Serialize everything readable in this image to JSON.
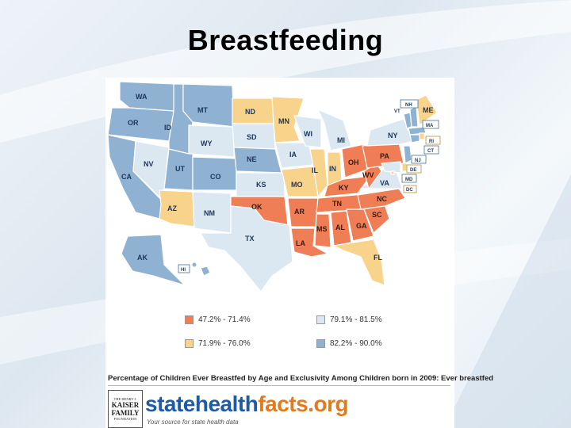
{
  "slide": {
    "title": "Breastfeeding"
  },
  "legend": {
    "items": [
      {
        "label": "47.2% - 71.4%",
        "color": "#ef7d55"
      },
      {
        "label": "79.1% - 81.5%",
        "color": "#dbe8f2"
      },
      {
        "label": "71.9% - 76.0%",
        "color": "#f8d38c"
      },
      {
        "label": "82.2% - 90.0%",
        "color": "#8fb2d3"
      }
    ]
  },
  "map": {
    "state_labels": {
      "WA": "WA",
      "OR": "OR",
      "CA": "CA",
      "NV": "NV",
      "ID": "ID",
      "MT": "MT",
      "WY": "WY",
      "UT": "UT",
      "AZ": "AZ",
      "CO": "CO",
      "NM": "NM",
      "ND": "ND",
      "SD": "SD",
      "NE": "NE",
      "KS": "KS",
      "OK": "OK",
      "TX": "TX",
      "MN": "MN",
      "IA": "IA",
      "MO": "MO",
      "AR": "AR",
      "LA": "LA",
      "WI": "WI",
      "IL": "IL",
      "MI": "MI",
      "IN": "IN",
      "OH": "OH",
      "KY": "KY",
      "TN": "TN",
      "MS": "MS",
      "AL": "AL",
      "GA": "GA",
      "FL": "FL",
      "SC": "SC",
      "NC": "NC",
      "VA": "VA",
      "WV": "WV",
      "PA": "PA",
      "NY": "NY",
      "VT": "VT",
      "NH": "NH",
      "ME": "ME",
      "MA": "MA",
      "RI": "RI",
      "CT": "CT",
      "NJ": "NJ",
      "DE": "DE",
      "MD": "MD",
      "DC": "DC",
      "AK": "AK",
      "HI": "HI"
    },
    "state_colors": {
      "WA": "#8fb2d3",
      "OR": "#8fb2d3",
      "CA": "#8fb2d3",
      "NV": "#dbe8f2",
      "ID": "#8fb2d3",
      "MT": "#8fb2d3",
      "WY": "#dbe8f2",
      "UT": "#8fb2d3",
      "AZ": "#f8d38c",
      "CO": "#8fb2d3",
      "NM": "#dbe8f2",
      "ND": "#f8d38c",
      "SD": "#dbe8f2",
      "NE": "#8fb2d3",
      "KS": "#dbe8f2",
      "OK": "#ef7d55",
      "TX": "#dbe8f2",
      "MN": "#f8d38c",
      "IA": "#dbe8f2",
      "MO": "#f8d38c",
      "AR": "#ef7d55",
      "LA": "#ef7d55",
      "WI": "#dbe8f2",
      "IL": "#f8d38c",
      "MI": "#dbe8f2",
      "IN": "#f8d38c",
      "OH": "#ef7d55",
      "KY": "#ef7d55",
      "TN": "#ef7d55",
      "MS": "#ef7d55",
      "AL": "#ef7d55",
      "GA": "#ef7d55",
      "FL": "#f8d38c",
      "SC": "#ef7d55",
      "NC": "#ef7d55",
      "VA": "#dbe8f2",
      "WV": "#ef7d55",
      "PA": "#ef7d55",
      "NY": "#dbe8f2",
      "VT": "#8fb2d3",
      "NH": "#8fb2d3",
      "ME": "#f8d38c",
      "MA": "#8fb2d3",
      "RI": "#f8d38c",
      "CT": "#8fb2d3",
      "NJ": "#8fb2d3",
      "DE": "#f8d38c",
      "MD": "#dbe8f2",
      "DC": "#f8d38c",
      "AK": "#8fb2d3",
      "HI": "#8fb2d3"
    }
  },
  "caption": "Percentage of Children Ever Breastfed by Age and Exclusivity Among Children born in 2009: Ever breastfed",
  "footer": {
    "kff_logo_lines": [
      "THE HENRY J.",
      "KAISER",
      "FAMILY",
      "FOUNDATION"
    ],
    "site_name_part1": "statehealth",
    "site_name_part2": "facts.org",
    "tagline": "Your source for state health data"
  }
}
